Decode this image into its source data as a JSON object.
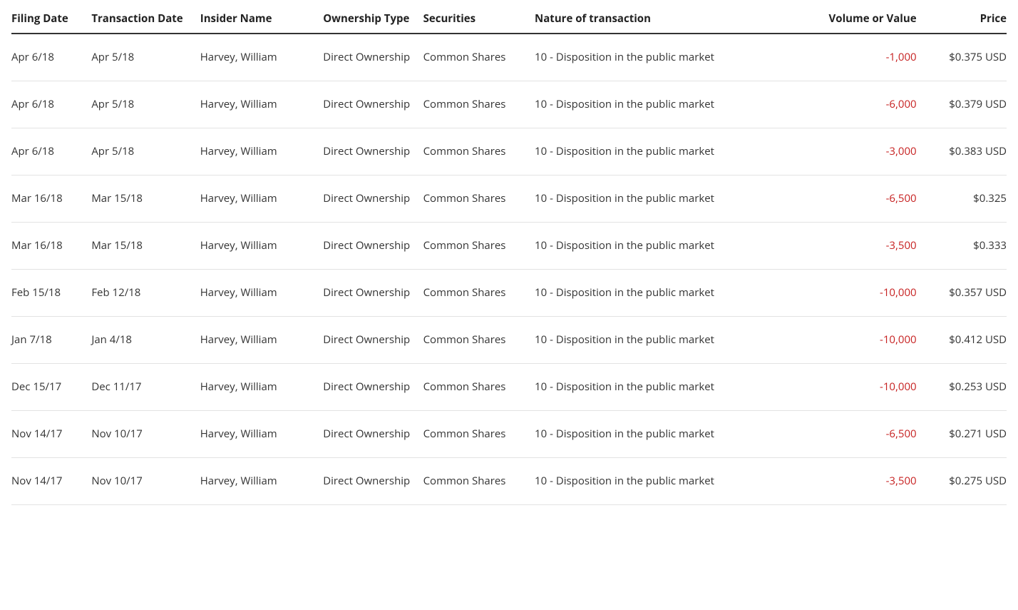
{
  "table": {
    "columns": [
      {
        "key": "filing_date",
        "label": "Filing Date",
        "class": "col-filing",
        "align": "left"
      },
      {
        "key": "txn_date",
        "label": "Transaction Date",
        "class": "col-txn",
        "align": "left"
      },
      {
        "key": "insider",
        "label": "Insider Name",
        "class": "col-insider",
        "align": "left"
      },
      {
        "key": "ownership",
        "label": "Ownership Type",
        "class": "col-owner",
        "align": "left"
      },
      {
        "key": "securities",
        "label": "Securities",
        "class": "col-sec",
        "align": "left"
      },
      {
        "key": "nature",
        "label": "Nature of transaction",
        "class": "col-nature",
        "align": "left"
      },
      {
        "key": "volume",
        "label": "Volume or Value",
        "class": "col-volume",
        "align": "right"
      },
      {
        "key": "price",
        "label": "Price",
        "class": "col-price",
        "align": "right"
      }
    ],
    "rows": [
      {
        "filing_date": "Apr 6/18",
        "txn_date": "Apr 5/18",
        "insider": "Harvey, William",
        "ownership": "Direct Ownership",
        "securities": "Common Shares",
        "nature": "10 - Disposition in the public market",
        "volume": "-1,000",
        "volume_negative": true,
        "price": "$0.375 USD"
      },
      {
        "filing_date": "Apr 6/18",
        "txn_date": "Apr 5/18",
        "insider": "Harvey, William",
        "ownership": "Direct Ownership",
        "securities": "Common Shares",
        "nature": "10 - Disposition in the public market",
        "volume": "-6,000",
        "volume_negative": true,
        "price": "$0.379 USD"
      },
      {
        "filing_date": "Apr 6/18",
        "txn_date": "Apr 5/18",
        "insider": "Harvey, William",
        "ownership": "Direct Ownership",
        "securities": "Common Shares",
        "nature": "10 - Disposition in the public market",
        "volume": "-3,000",
        "volume_negative": true,
        "price": "$0.383 USD"
      },
      {
        "filing_date": "Mar 16/18",
        "txn_date": "Mar 15/18",
        "insider": "Harvey, William",
        "ownership": "Direct Ownership",
        "securities": "Common Shares",
        "nature": "10 - Disposition in the public market",
        "volume": "-6,500",
        "volume_negative": true,
        "price": "$0.325"
      },
      {
        "filing_date": "Mar 16/18",
        "txn_date": "Mar 15/18",
        "insider": "Harvey, William",
        "ownership": "Direct Ownership",
        "securities": "Common Shares",
        "nature": "10 - Disposition in the public market",
        "volume": "-3,500",
        "volume_negative": true,
        "price": "$0.333"
      },
      {
        "filing_date": "Feb 15/18",
        "txn_date": "Feb 12/18",
        "insider": "Harvey, William",
        "ownership": "Direct Ownership",
        "securities": "Common Shares",
        "nature": "10 - Disposition in the public market",
        "volume": "-10,000",
        "volume_negative": true,
        "price": "$0.357 USD"
      },
      {
        "filing_date": "Jan 7/18",
        "txn_date": "Jan 4/18",
        "insider": "Harvey, William",
        "ownership": "Direct Ownership",
        "securities": "Common Shares",
        "nature": "10 - Disposition in the public market",
        "volume": "-10,000",
        "volume_negative": true,
        "price": "$0.412 USD"
      },
      {
        "filing_date": "Dec 15/17",
        "txn_date": "Dec 11/17",
        "insider": "Harvey, William",
        "ownership": "Direct Ownership",
        "securities": "Common Shares",
        "nature": "10 - Disposition in the public market",
        "volume": "-10,000",
        "volume_negative": true,
        "price": "$0.253 USD"
      },
      {
        "filing_date": "Nov 14/17",
        "txn_date": "Nov 10/17",
        "insider": "Harvey, William",
        "ownership": "Direct Ownership",
        "securities": "Common Shares",
        "nature": "10 - Disposition in the public market",
        "volume": "-6,500",
        "volume_negative": true,
        "price": "$0.271 USD"
      },
      {
        "filing_date": "Nov 14/17",
        "txn_date": "Nov 10/17",
        "insider": "Harvey, William",
        "ownership": "Direct Ownership",
        "securities": "Common Shares",
        "nature": "10 - Disposition in the public market",
        "volume": "-3,500",
        "volume_negative": true,
        "price": "$0.275 USD"
      }
    ],
    "styles": {
      "font_family": "Open Sans, Segoe UI, Helvetica Neue, Arial, sans-serif",
      "font_size_pt": 11,
      "text_color": "#333333",
      "header_text_color": "#222222",
      "header_border_color": "#333333",
      "row_border_color": "#e3e3e3",
      "negative_color": "#c61f1f",
      "background_color": "#ffffff"
    }
  }
}
